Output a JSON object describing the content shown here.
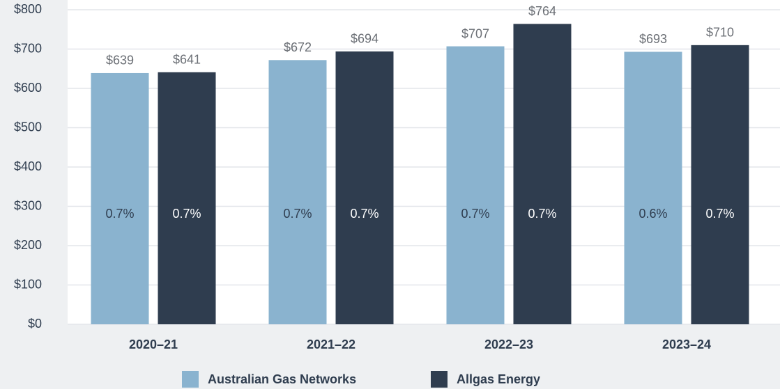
{
  "chart_data": {
    "type": "bar",
    "categories": [
      "2020–21",
      "2021–22",
      "2022–23",
      "2023–24"
    ],
    "series": [
      {
        "name": "Australian Gas Networks",
        "color": "#8ab3cf",
        "values": [
          639,
          672,
          707,
          693
        ],
        "value_labels": [
          "$639",
          "$672",
          "$707",
          "$693"
        ],
        "share_labels": [
          "0.7%",
          "0.7%",
          "0.7%",
          "0.6%"
        ]
      },
      {
        "name": "Allgas Energy",
        "color": "#2f3d4f",
        "values": [
          641,
          694,
          764,
          710
        ],
        "value_labels": [
          "$641",
          "$694",
          "$764",
          "$710"
        ],
        "share_labels": [
          "0.7%",
          "0.7%",
          "0.7%",
          "0.7%"
        ]
      }
    ],
    "ylim": [
      0,
      800
    ],
    "yticks": [
      {
        "value": 0,
        "label": "$0"
      },
      {
        "value": 100,
        "label": "$100"
      },
      {
        "value": 200,
        "label": "$200"
      },
      {
        "value": 300,
        "label": "$300"
      },
      {
        "value": 400,
        "label": "$400"
      },
      {
        "value": 500,
        "label": "$500"
      },
      {
        "value": 600,
        "label": "$600"
      },
      {
        "value": 700,
        "label": "$700"
      },
      {
        "value": 800,
        "label": "$800"
      }
    ],
    "grid": true,
    "legend": "bottom"
  }
}
